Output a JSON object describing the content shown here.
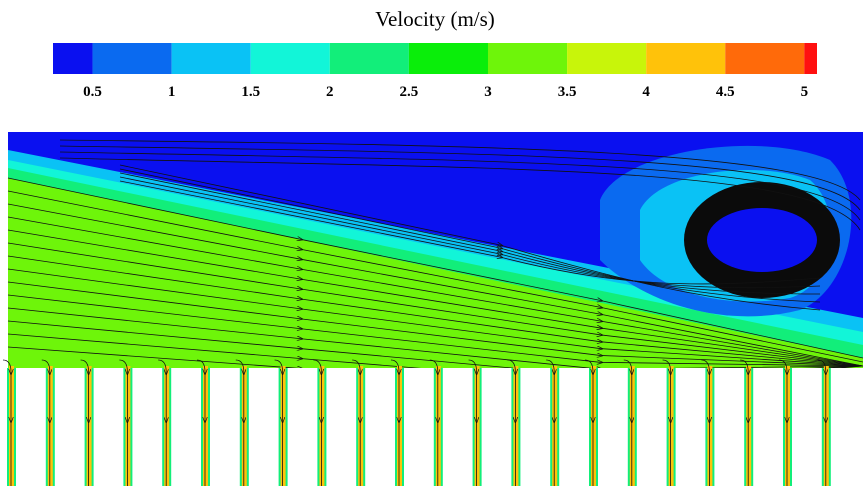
{
  "title": "Velocity (m/s)",
  "colorbar": {
    "range": [
      0.25,
      5.08
    ],
    "ticks": [
      0.5,
      1,
      1.5,
      2,
      2.5,
      3,
      3.5,
      4,
      4.5,
      5
    ],
    "colors": [
      "#0a10f0",
      "#0a6af0",
      "#0ac2f5",
      "#12f5d8",
      "#12ee7a",
      "#0aee0a",
      "#6ef50a",
      "#c8f50a",
      "#ffc20a",
      "#ff6a0a",
      "#ff1010"
    ]
  }
}
